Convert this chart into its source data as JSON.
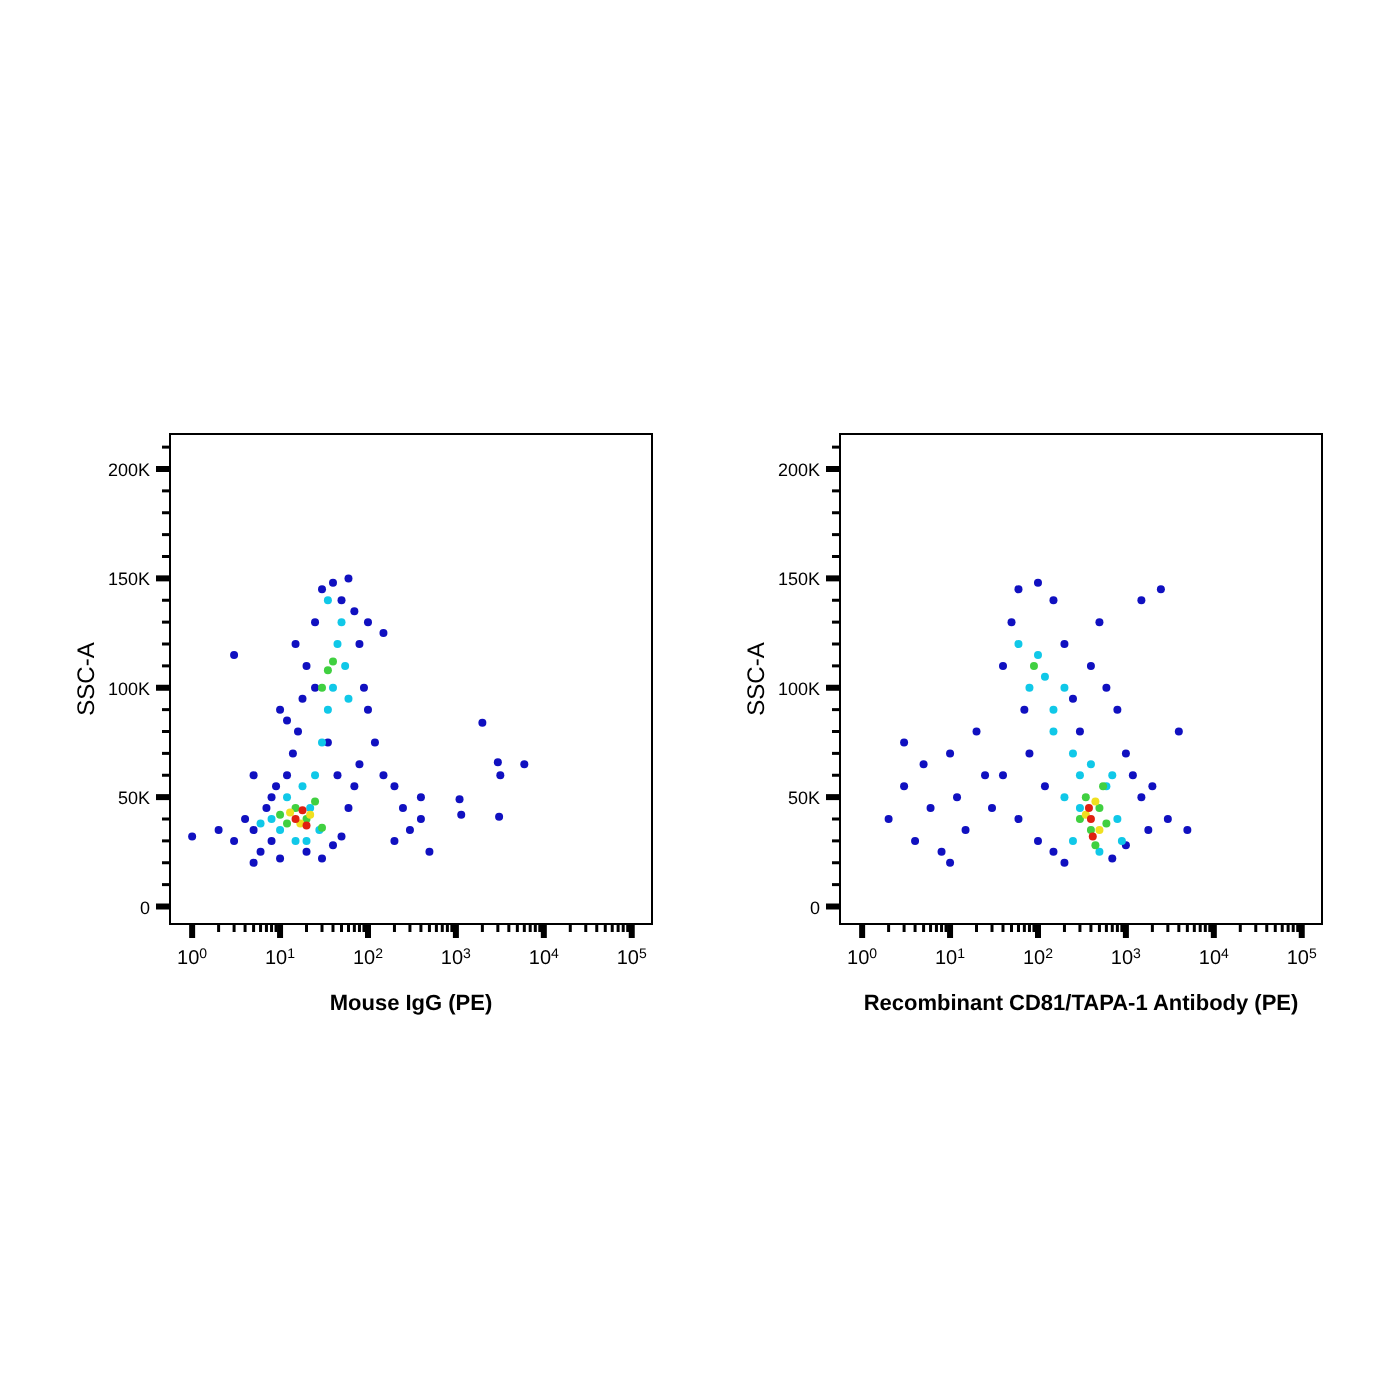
{
  "chart_data": [
    {
      "type": "scatter",
      "xlabel": "Mouse IgG (PE)",
      "ylabel": "SSC-A",
      "log": "x",
      "marker": "circle",
      "xlim": [
        0.56,
        170000
      ],
      "ylim": [
        -8000,
        216000
      ],
      "xticks": [
        {
          "value": 1,
          "label": "10$^{0}$"
        },
        {
          "value": 2,
          "label": null
        },
        {
          "value": 3,
          "label": null
        },
        {
          "value": 4,
          "label": null
        },
        {
          "value": 5,
          "label": null
        },
        {
          "value": 6,
          "label": null
        },
        {
          "value": 7,
          "label": null
        },
        {
          "value": 8,
          "label": null
        },
        {
          "value": 9,
          "label": null
        },
        {
          "value": 10,
          "label": "10$^{1}$"
        },
        {
          "value": 20,
          "label": null
        },
        {
          "value": 30,
          "label": null
        },
        {
          "value": 40,
          "label": null
        },
        {
          "value": 50,
          "label": null
        },
        {
          "value": 60,
          "label": null
        },
        {
          "value": 70,
          "label": null
        },
        {
          "value": 80,
          "label": null
        },
        {
          "value": 90,
          "label": null
        },
        {
          "value": 100,
          "label": "10$^{2}$"
        },
        {
          "value": 200,
          "label": null
        },
        {
          "value": 300,
          "label": null
        },
        {
          "value": 400,
          "label": null
        },
        {
          "value": 500,
          "label": null
        },
        {
          "value": 600,
          "label": null
        },
        {
          "value": 700,
          "label": null
        },
        {
          "value": 800,
          "label": null
        },
        {
          "value": 900,
          "label": null
        },
        {
          "value": 1000,
          "label": "10$^{3}$"
        },
        {
          "value": 2000,
          "label": null
        },
        {
          "value": 3000,
          "label": null
        },
        {
          "value": 4000,
          "label": null
        },
        {
          "value": 5000,
          "label": null
        },
        {
          "value": 6000,
          "label": null
        },
        {
          "value": 7000,
          "label": null
        },
        {
          "value": 8000,
          "label": null
        },
        {
          "value": 9000,
          "label": null
        },
        {
          "value": 10000,
          "label": "10$^{4}$"
        },
        {
          "value": 20000,
          "label": null
        },
        {
          "value": 30000,
          "label": null
        },
        {
          "value": 40000,
          "label": null
        },
        {
          "value": 50000,
          "label": null
        },
        {
          "value": 60000,
          "label": null
        },
        {
          "value": 70000,
          "label": null
        },
        {
          "value": 80000,
          "label": null
        },
        {
          "value": 90000,
          "label": null
        },
        {
          "value": 100000,
          "label": "10$^{5}$"
        }
      ],
      "yticks": [
        {
          "value": 0,
          "label": "0"
        },
        {
          "value": 10000,
          "label": null
        },
        {
          "value": 20000,
          "label": null
        },
        {
          "value": 30000,
          "label": null
        },
        {
          "value": 40000,
          "label": null
        },
        {
          "value": 50000,
          "label": "50K"
        },
        {
          "value": 60000,
          "label": null
        },
        {
          "value": 70000,
          "label": null
        },
        {
          "value": 80000,
          "label": null
        },
        {
          "value": 90000,
          "label": null
        },
        {
          "value": 100000,
          "label": "100K"
        },
        {
          "value": 110000,
          "label": null
        },
        {
          "value": 120000,
          "label": null
        },
        {
          "value": 130000,
          "label": null
        },
        {
          "value": 140000,
          "label": null
        },
        {
          "value": 150000,
          "label": "150K"
        },
        {
          "value": 160000,
          "label": null
        },
        {
          "value": 170000,
          "label": null
        },
        {
          "value": 180000,
          "label": null
        },
        {
          "value": 190000,
          "label": null
        },
        {
          "value": 200000,
          "label": "200K"
        },
        {
          "value": 210000,
          "label": null
        }
      ],
      "series": [
        {
          "color": "#1010c0",
          "x": [
            3,
            4,
            5,
            6,
            7,
            8,
            9,
            10,
            12,
            14,
            16,
            18,
            20,
            25,
            30,
            40,
            50,
            60,
            70,
            80,
            90,
            100,
            120,
            150,
            200,
            250,
            300,
            20,
            30,
            40,
            50,
            60,
            70,
            80,
            15,
            10,
            5,
            3,
            100,
            150,
            200,
            400,
            5,
            8,
            12,
            25,
            35,
            45,
            2,
            1,
            2000,
            3000,
            3200,
            6000,
            1100,
            1150,
            3100,
            500,
            400
          ],
          "values": [
            30000,
            40000,
            35000,
            25000,
            45000,
            30000,
            55000,
            22000,
            60000,
            70000,
            80000,
            95000,
            110000,
            130000,
            145000,
            148000,
            140000,
            150000,
            135000,
            120000,
            100000,
            90000,
            75000,
            60000,
            55000,
            45000,
            35000,
            25000,
            22000,
            28000,
            32000,
            45000,
            55000,
            65000,
            120000,
            90000,
            60000,
            115000,
            130000,
            125000,
            30000,
            40000,
            20000,
            50000,
            85000,
            100000,
            75000,
            60000,
            35000,
            32000,
            84000,
            66000,
            60000,
            65000,
            49000,
            42000,
            41000,
            25000,
            50000
          ]
        },
        {
          "color": "#10c8e8",
          "x": [
            8,
            10,
            12,
            15,
            18,
            22,
            25,
            28,
            30,
            35,
            40,
            45,
            50,
            55,
            60,
            35,
            6,
            20
          ],
          "values": [
            40000,
            35000,
            50000,
            30000,
            55000,
            45000,
            60000,
            35000,
            75000,
            90000,
            100000,
            120000,
            130000,
            110000,
            95000,
            140000,
            38000,
            30000
          ]
        },
        {
          "color": "#40d040",
          "x": [
            10,
            12,
            15,
            20,
            25,
            30,
            35,
            40,
            30
          ],
          "values": [
            42000,
            38000,
            45000,
            40000,
            48000,
            36000,
            108000,
            112000,
            100000
          ]
        },
        {
          "color": "#f0e020",
          "x": [
            13,
            17,
            22
          ],
          "values": [
            43000,
            38000,
            42000
          ]
        },
        {
          "color": "#e02010",
          "x": [
            15,
            18,
            20
          ],
          "values": [
            40000,
            44000,
            37000
          ]
        }
      ]
    },
    {
      "type": "scatter",
      "xlabel": "Recombinant CD81/TAPA-1 Antibody (PE)",
      "ylabel": "SSC-A",
      "log": "x",
      "marker": "circle",
      "xlim": [
        0.56,
        170000
      ],
      "ylim": [
        -8000,
        216000
      ],
      "xticks": [
        {
          "value": 1,
          "label": "10$^{0}$"
        },
        {
          "value": 2,
          "label": null
        },
        {
          "value": 3,
          "label": null
        },
        {
          "value": 4,
          "label": null
        },
        {
          "value": 5,
          "label": null
        },
        {
          "value": 6,
          "label": null
        },
        {
          "value": 7,
          "label": null
        },
        {
          "value": 8,
          "label": null
        },
        {
          "value": 9,
          "label": null
        },
        {
          "value": 10,
          "label": "10$^{1}$"
        },
        {
          "value": 20,
          "label": null
        },
        {
          "value": 30,
          "label": null
        },
        {
          "value": 40,
          "label": null
        },
        {
          "value": 50,
          "label": null
        },
        {
          "value": 60,
          "label": null
        },
        {
          "value": 70,
          "label": null
        },
        {
          "value": 80,
          "label": null
        },
        {
          "value": 90,
          "label": null
        },
        {
          "value": 100,
          "label": "10$^{2}$"
        },
        {
          "value": 200,
          "label": null
        },
        {
          "value": 300,
          "label": null
        },
        {
          "value": 400,
          "label": null
        },
        {
          "value": 500,
          "label": null
        },
        {
          "value": 600,
          "label": null
        },
        {
          "value": 700,
          "label": null
        },
        {
          "value": 800,
          "label": null
        },
        {
          "value": 900,
          "label": null
        },
        {
          "value": 1000,
          "label": "10$^{3}$"
        },
        {
          "value": 2000,
          "label": null
        },
        {
          "value": 3000,
          "label": null
        },
        {
          "value": 4000,
          "label": null
        },
        {
          "value": 5000,
          "label": null
        },
        {
          "value": 6000,
          "label": null
        },
        {
          "value": 7000,
          "label": null
        },
        {
          "value": 8000,
          "label": null
        },
        {
          "value": 9000,
          "label": null
        },
        {
          "value": 10000,
          "label": "10$^{4}$"
        },
        {
          "value": 20000,
          "label": null
        },
        {
          "value": 30000,
          "label": null
        },
        {
          "value": 40000,
          "label": null
        },
        {
          "value": 50000,
          "label": null
        },
        {
          "value": 60000,
          "label": null
        },
        {
          "value": 70000,
          "label": null
        },
        {
          "value": 80000,
          "label": null
        },
        {
          "value": 90000,
          "label": null
        },
        {
          "value": 100000,
          "label": "10$^{5}$"
        }
      ],
      "yticks": [
        {
          "value": 0,
          "label": "0"
        },
        {
          "value": 10000,
          "label": null
        },
        {
          "value": 20000,
          "label": null
        },
        {
          "value": 30000,
          "label": null
        },
        {
          "value": 40000,
          "label": null
        },
        {
          "value": 50000,
          "label": "50K"
        },
        {
          "value": 60000,
          "label": null
        },
        {
          "value": 70000,
          "label": null
        },
        {
          "value": 80000,
          "label": null
        },
        {
          "value": 90000,
          "label": null
        },
        {
          "value": 100000,
          "label": "100K"
        },
        {
          "value": 110000,
          "label": null
        },
        {
          "value": 120000,
          "label": null
        },
        {
          "value": 130000,
          "label": null
        },
        {
          "value": 140000,
          "label": null
        },
        {
          "value": 150000,
          "label": "150K"
        },
        {
          "value": 160000,
          "label": null
        },
        {
          "value": 170000,
          "label": null
        },
        {
          "value": 180000,
          "label": null
        },
        {
          "value": 190000,
          "label": null
        },
        {
          "value": 200000,
          "label": "200K"
        },
        {
          "value": 210000,
          "label": null
        }
      ],
      "series": [
        {
          "color": "#1010c0",
          "x": [
            2,
            3,
            4,
            5,
            6,
            8,
            10,
            12,
            15,
            20,
            25,
            30,
            40,
            50,
            60,
            70,
            80,
            100,
            120,
            150,
            200,
            250,
            300,
            400,
            500,
            600,
            800,
            1000,
            1200,
            1500,
            2000,
            3000,
            5000,
            1500,
            2500,
            100,
            150,
            200,
            700,
            1000,
            40,
            60,
            3,
            10,
            4000,
            1800
          ],
          "values": [
            40000,
            55000,
            30000,
            65000,
            45000,
            25000,
            70000,
            50000,
            35000,
            80000,
            60000,
            45000,
            110000,
            130000,
            145000,
            90000,
            70000,
            148000,
            55000,
            140000,
            120000,
            95000,
            80000,
            110000,
            130000,
            100000,
            90000,
            70000,
            60000,
            50000,
            55000,
            40000,
            35000,
            140000,
            145000,
            30000,
            25000,
            20000,
            22000,
            28000,
            60000,
            40000,
            75000,
            20000,
            80000,
            35000
          ]
        },
        {
          "color": "#10c8e8",
          "x": [
            60,
            80,
            100,
            120,
            150,
            200,
            250,
            300,
            150,
            200,
            250,
            300,
            600,
            800,
            900,
            500,
            400,
            700
          ],
          "values": [
            120000,
            100000,
            115000,
            105000,
            90000,
            100000,
            70000,
            60000,
            80000,
            50000,
            30000,
            45000,
            55000,
            40000,
            30000,
            25000,
            65000,
            60000
          ]
        },
        {
          "color": "#40d040",
          "x": [
            90,
            300,
            350,
            400,
            500,
            600,
            450,
            550
          ],
          "values": [
            110000,
            40000,
            50000,
            35000,
            45000,
            38000,
            28000,
            55000
          ]
        },
        {
          "color": "#f0e020",
          "x": [
            350,
            450,
            500
          ],
          "values": [
            42000,
            48000,
            35000
          ]
        },
        {
          "color": "#e02010",
          "x": [
            400,
            420,
            380
          ],
          "values": [
            40000,
            32000,
            45000
          ]
        }
      ]
    }
  ]
}
